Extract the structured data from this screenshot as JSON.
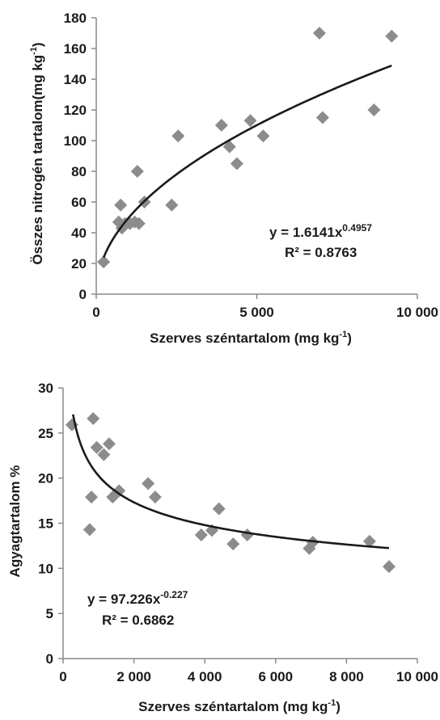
{
  "chart_data": [
    {
      "type": "scatter",
      "title": "",
      "xlabel": "Szerves széntartalom  (mg kg",
      "xlabel_sup": "-1",
      "xlabel_end": ")",
      "ylabel": "Összes nitrogén tartalom(mg kg",
      "ylabel_sup": "-1",
      "ylabel_end": ")",
      "xlim": [
        0,
        10000
      ],
      "ylim": [
        0,
        180
      ],
      "x_ticks": [
        0,
        5000,
        10000
      ],
      "x_tick_labels": [
        "0",
        "5 000",
        "10 000"
      ],
      "y_ticks": [
        0,
        20,
        40,
        60,
        80,
        100,
        120,
        140,
        160,
        180
      ],
      "y_tick_labels": [
        "0",
        "20",
        "40",
        "60",
        "80",
        "100",
        "120",
        "140",
        "160",
        "180"
      ],
      "grid": false,
      "marker_color": "#8c8c8c",
      "line_color": "#1a1a1a",
      "points": [
        {
          "x": 230,
          "y": 21
        },
        {
          "x": 700,
          "y": 47
        },
        {
          "x": 760,
          "y": 58
        },
        {
          "x": 800,
          "y": 43
        },
        {
          "x": 900,
          "y": 46
        },
        {
          "x": 1050,
          "y": 46
        },
        {
          "x": 1200,
          "y": 47
        },
        {
          "x": 1280,
          "y": 80
        },
        {
          "x": 1330,
          "y": 46
        },
        {
          "x": 1500,
          "y": 60
        },
        {
          "x": 2350,
          "y": 58
        },
        {
          "x": 2550,
          "y": 103
        },
        {
          "x": 3900,
          "y": 110
        },
        {
          "x": 4150,
          "y": 96
        },
        {
          "x": 4380,
          "y": 85
        },
        {
          "x": 4800,
          "y": 113
        },
        {
          "x": 5200,
          "y": 103
        },
        {
          "x": 6950,
          "y": 170
        },
        {
          "x": 7050,
          "y": 115
        },
        {
          "x": 8650,
          "y": 120
        },
        {
          "x": 9200,
          "y": 168
        }
      ],
      "trendline": {
        "a": 1.6141,
        "b": 0.4957,
        "x_start": 230,
        "x_end": 9200
      },
      "equation_prefix": "y = 1.6141x",
      "equation_exp": "0.4957",
      "r2_text": "R² = 0.8763"
    },
    {
      "type": "scatter",
      "title": "",
      "xlabel": "Szerves széntartalom (mg kg",
      "xlabel_sup": "-1",
      "xlabel_end": ")",
      "ylabel": "Agyagtartalom %",
      "xlim": [
        0,
        10000
      ],
      "ylim": [
        0,
        30
      ],
      "x_ticks": [
        0,
        2000,
        4000,
        6000,
        8000,
        10000
      ],
      "x_tick_labels": [
        "0",
        "2 000",
        "4 000",
        "6 000",
        "8 000",
        "10 000"
      ],
      "y_ticks": [
        0,
        5,
        10,
        15,
        20,
        25,
        30
      ],
      "y_tick_labels": [
        "0",
        "5",
        "10",
        "15",
        "20",
        "25",
        "30"
      ],
      "grid": false,
      "marker_color": "#8c8c8c",
      "line_color": "#1a1a1a",
      "points": [
        {
          "x": 250,
          "y": 25.9
        },
        {
          "x": 750,
          "y": 14.3
        },
        {
          "x": 800,
          "y": 17.9
        },
        {
          "x": 850,
          "y": 26.6
        },
        {
          "x": 950,
          "y": 23.4
        },
        {
          "x": 1150,
          "y": 22.6
        },
        {
          "x": 1300,
          "y": 23.8
        },
        {
          "x": 1400,
          "y": 17.9
        },
        {
          "x": 1580,
          "y": 18.6
        },
        {
          "x": 2400,
          "y": 19.4
        },
        {
          "x": 2600,
          "y": 17.9
        },
        {
          "x": 3900,
          "y": 13.7
        },
        {
          "x": 4200,
          "y": 14.2
        },
        {
          "x": 4400,
          "y": 16.6
        },
        {
          "x": 4800,
          "y": 12.7
        },
        {
          "x": 5200,
          "y": 13.7
        },
        {
          "x": 6950,
          "y": 12.2
        },
        {
          "x": 7050,
          "y": 12.9
        },
        {
          "x": 8650,
          "y": 13.0
        },
        {
          "x": 9200,
          "y": 10.2
        }
      ],
      "trendline": {
        "a": 97.226,
        "b": -0.227,
        "x_start": 280,
        "x_end": 9200
      },
      "equation_prefix": "y = 97.226x",
      "equation_exp": "-0.227",
      "r2_text": "R² = 0.6862"
    }
  ]
}
